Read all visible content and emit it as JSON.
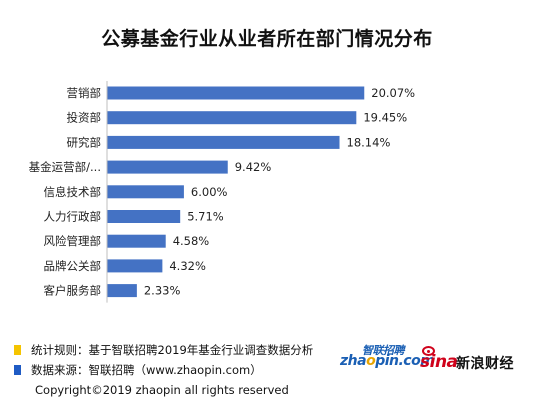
{
  "chart_data": {
    "type": "bar",
    "orientation": "horizontal",
    "title": "公募基金行业从业者所在部门情况分布",
    "categories": [
      "营销部",
      "投资部",
      "研究部",
      "基金运营部/...",
      "信息技术部",
      "人力行政部",
      "风险管理部",
      "品牌公关部",
      "客户服务部"
    ],
    "values": [
      20.07,
      19.45,
      18.14,
      9.42,
      6.0,
      5.71,
      4.58,
      4.32,
      2.33
    ],
    "value_labels": [
      "20.07%",
      "19.45%",
      "18.14%",
      "9.42%",
      "6.00%",
      "5.71%",
      "4.58%",
      "4.32%",
      "2.33%"
    ],
    "unit": "%",
    "xlim": [
      0,
      22
    ],
    "grid": false,
    "bar_color": "#4472c4"
  },
  "footer": {
    "rule_text": "统计规则：基于智联招聘2019年基金行业调查数据分析",
    "rule_color": "#f5c400",
    "source_text": "数据来源：智联招聘（www.zhaopin.com）",
    "source_color": "#1f5bc4",
    "copyright": "Copyright©2019 zhaopin all rights reserved"
  },
  "logos": {
    "zhaopin_cn": "智联招聘",
    "zhaopin_en_pre": "zha",
    "zhaopin_en_o": "o",
    "zhaopin_en_post": "pin.com",
    "sina_en": "sina",
    "sina_cn": "新浪财经"
  }
}
